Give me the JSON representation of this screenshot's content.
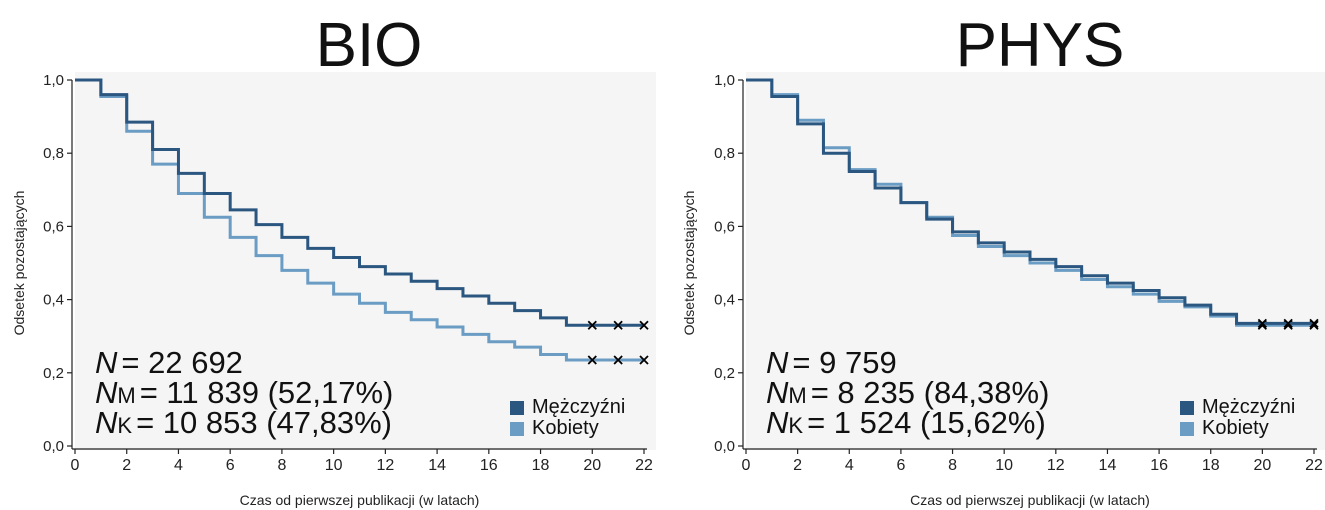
{
  "colors": {
    "men": "#2a5680",
    "women": "#6a9cc4",
    "panel_bg": "#f5f5f5",
    "censor": "#000000"
  },
  "chart_data": [
    {
      "type": "line",
      "title": "BIO",
      "xlabel": "Czas od pierwszej publikacji (w latach)",
      "ylabel": "Odsetek pozostających",
      "xlim": [
        0,
        22
      ],
      "ylim": [
        0,
        1
      ],
      "x_ticks": [
        "0",
        "2",
        "4",
        "6",
        "8",
        "10",
        "12",
        "14",
        "16",
        "18",
        "20",
        "22"
      ],
      "y_ticks": [
        "0,0",
        "0,2",
        "0,4",
        "0,6",
        "0,8",
        "1,0"
      ],
      "legend": [
        "Mężczyźni",
        "Kobiety"
      ],
      "legend_position": "bottom-right",
      "annotation": {
        "n_total": {
          "sym": "N",
          "sub": "",
          "text": "= 22 692"
        },
        "n_m": {
          "sym": "N",
          "sub": "M",
          "text": "= 11 839 (52,17%)"
        },
        "n_k": {
          "sym": "N",
          "sub": "K",
          "text": "= 10 853 (47,83%)"
        }
      },
      "series": [
        {
          "name": "Mężczyźni",
          "step": "post",
          "x": [
            0,
            1,
            2,
            3,
            4,
            5,
            6,
            7,
            8,
            9,
            10,
            11,
            12,
            13,
            14,
            15,
            16,
            17,
            18,
            19,
            20,
            21,
            22
          ],
          "y": [
            1.0,
            0.96,
            0.885,
            0.81,
            0.745,
            0.69,
            0.645,
            0.605,
            0.57,
            0.54,
            0.515,
            0.49,
            0.47,
            0.45,
            0.43,
            0.41,
            0.39,
            0.37,
            0.35,
            0.33,
            0.33,
            0.33,
            0.33
          ],
          "censor_x": [
            20,
            21,
            22
          ]
        },
        {
          "name": "Kobiety",
          "step": "post",
          "x": [
            0,
            1,
            2,
            3,
            4,
            5,
            6,
            7,
            8,
            9,
            10,
            11,
            12,
            13,
            14,
            15,
            16,
            17,
            18,
            19,
            20,
            21,
            22
          ],
          "y": [
            1.0,
            0.955,
            0.86,
            0.77,
            0.69,
            0.625,
            0.57,
            0.52,
            0.48,
            0.445,
            0.415,
            0.39,
            0.365,
            0.345,
            0.325,
            0.305,
            0.285,
            0.27,
            0.25,
            0.235,
            0.235,
            0.235,
            0.235
          ],
          "censor_x": [
            20,
            21,
            22
          ]
        }
      ]
    },
    {
      "type": "line",
      "title": "PHYS",
      "xlabel": "Czas od pierwszej publikacji (w latach)",
      "ylabel": "Odsetek pozostających",
      "xlim": [
        0,
        22
      ],
      "ylim": [
        0,
        1
      ],
      "x_ticks": [
        "0",
        "2",
        "4",
        "6",
        "8",
        "10",
        "12",
        "14",
        "16",
        "18",
        "20",
        "22"
      ],
      "y_ticks": [
        "0,0",
        "0,2",
        "0,4",
        "0,6",
        "0,8",
        "1,0"
      ],
      "legend": [
        "Mężczyźni",
        "Kobiety"
      ],
      "legend_position": "bottom-right",
      "annotation": {
        "n_total": {
          "sym": "N",
          "sub": "",
          "text": "= 9 759"
        },
        "n_m": {
          "sym": "N",
          "sub": "M",
          "text": "= 8 235 (84,38%)"
        },
        "n_k": {
          "sym": "N",
          "sub": "K",
          "text": "= 1 524 (15,62%)"
        }
      },
      "series": [
        {
          "name": "Mężczyźni",
          "step": "post",
          "x": [
            0,
            1,
            2,
            3,
            4,
            5,
            6,
            7,
            8,
            9,
            10,
            11,
            12,
            13,
            14,
            15,
            16,
            17,
            18,
            19,
            20,
            21,
            22
          ],
          "y": [
            1.0,
            0.955,
            0.88,
            0.8,
            0.75,
            0.705,
            0.665,
            0.62,
            0.585,
            0.555,
            0.53,
            0.51,
            0.49,
            0.465,
            0.445,
            0.425,
            0.405,
            0.385,
            0.36,
            0.335,
            0.335,
            0.335,
            0.335
          ],
          "censor_x": [
            20,
            21,
            22
          ]
        },
        {
          "name": "Kobiety",
          "step": "post",
          "x": [
            0,
            1,
            2,
            3,
            4,
            5,
            6,
            7,
            8,
            9,
            10,
            11,
            12,
            13,
            14,
            15,
            16,
            17,
            18,
            19,
            20,
            21,
            22
          ],
          "y": [
            1.0,
            0.96,
            0.89,
            0.815,
            0.755,
            0.715,
            0.665,
            0.625,
            0.575,
            0.545,
            0.52,
            0.5,
            0.48,
            0.455,
            0.435,
            0.415,
            0.395,
            0.38,
            0.355,
            0.33,
            0.33,
            0.33,
            0.33
          ],
          "censor_x": [
            20,
            21,
            22
          ]
        }
      ]
    }
  ]
}
